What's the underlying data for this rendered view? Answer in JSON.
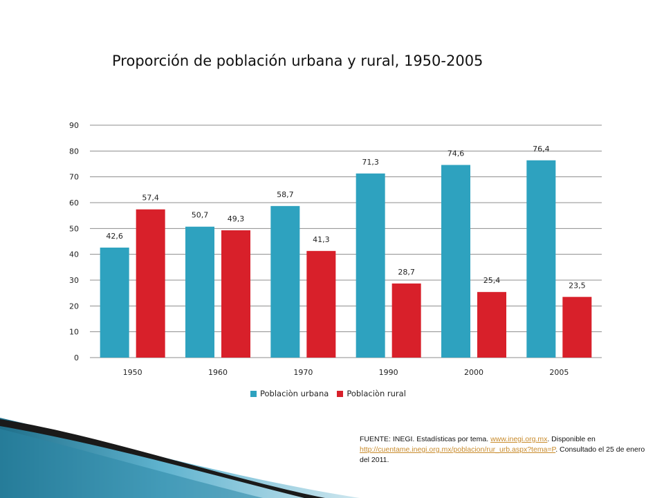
{
  "colors": {
    "urban": "#2ea2bf",
    "rural": "#d8202a",
    "grid": "#8c8c8c",
    "link": "#c88a2a"
  },
  "chart_data": {
    "type": "bar",
    "title": "Proporción de población urbana y rural, 1950-2005",
    "categories": [
      "1950",
      "1960",
      "1970",
      "1990",
      "2000",
      "2005"
    ],
    "series": [
      {
        "name": "Poblaciòn urbana",
        "values": [
          42.6,
          50.7,
          58.7,
          71.3,
          74.6,
          76.4
        ],
        "labels": [
          "42,6",
          "50,7",
          "58,7",
          "71,3",
          "74,6",
          "76,4"
        ]
      },
      {
        "name": "Poblaciòn rural",
        "values": [
          57.4,
          49.3,
          41.3,
          28.7,
          25.4,
          23.5
        ],
        "labels": [
          "57,4",
          "49,3",
          "41,3",
          "28,7",
          "25,4",
          "23,5"
        ]
      }
    ],
    "xlabel": "",
    "ylabel": "",
    "ylim": [
      0,
      90
    ],
    "yticks": [
      0,
      10,
      20,
      30,
      40,
      50,
      60,
      70,
      80,
      90
    ],
    "grid": true,
    "legend": "bottom"
  },
  "source": {
    "prefix": "FUENTE: INEGI. Estadísticas por tema. ",
    "link1": "www.inegi.org.mx",
    "middle": ". Disponible en ",
    "link2": "http://cuentame.inegi.org.mx/poblacion/rur_urb.aspx?tema=P",
    "suffix": ". Consultado el 25 de enero del 2011."
  }
}
